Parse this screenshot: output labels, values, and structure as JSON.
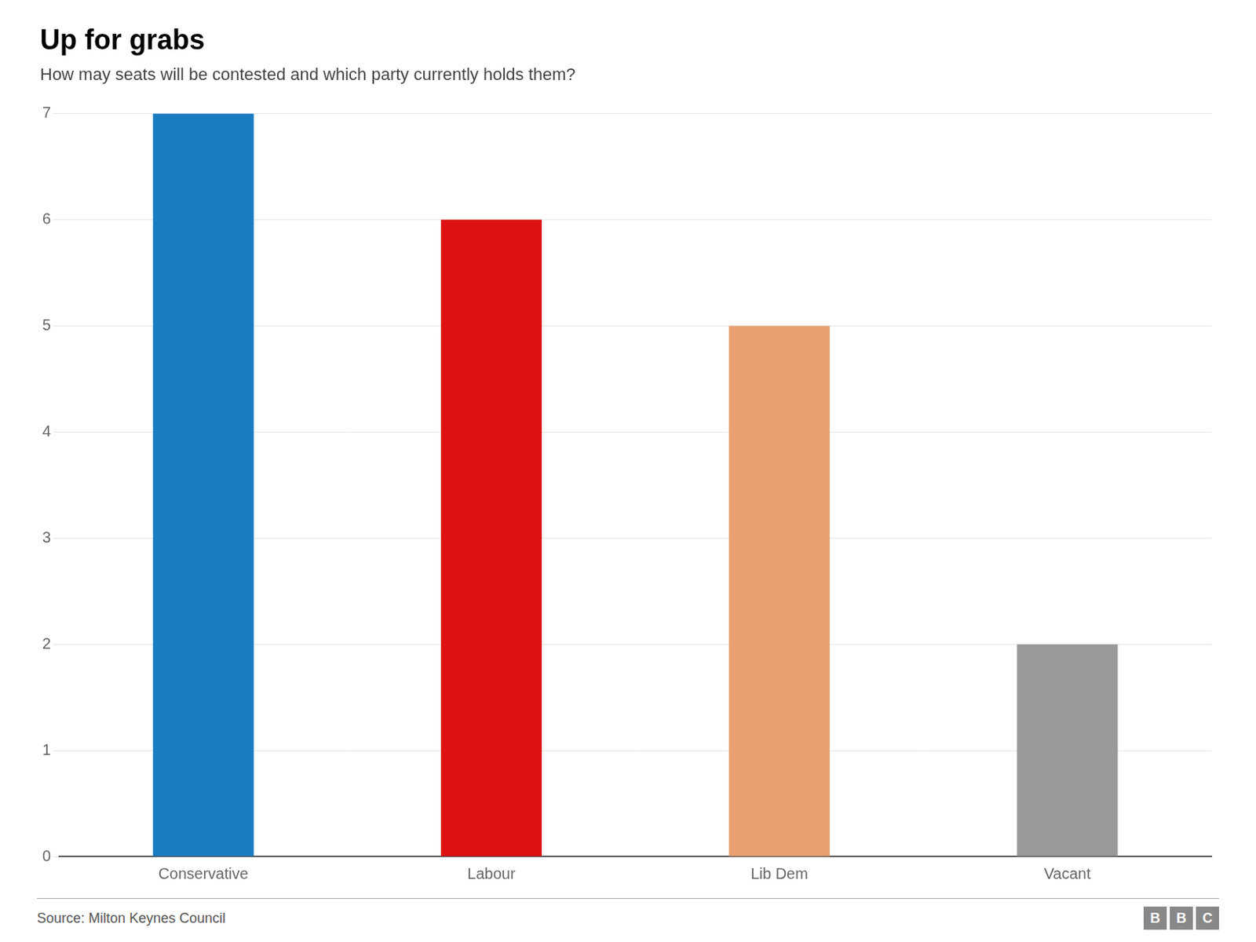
{
  "chart_data": {
    "type": "bar",
    "title": "Up for grabs",
    "subtitle": "How may seats will be contested and which party currently holds them?",
    "categories": [
      "Conservative",
      "Labour",
      "Lib Dem",
      "Vacant"
    ],
    "values": [
      7,
      6,
      5,
      2
    ],
    "colors": [
      "#1a7dc4",
      "#dd1111",
      "#e8a070",
      "#999999"
    ],
    "ylim": [
      0,
      7
    ],
    "yticks": [
      0,
      1,
      2,
      3,
      4,
      5,
      6,
      7
    ],
    "grid": true,
    "source": "Source: Milton Keynes Council",
    "logo": "BBC"
  }
}
